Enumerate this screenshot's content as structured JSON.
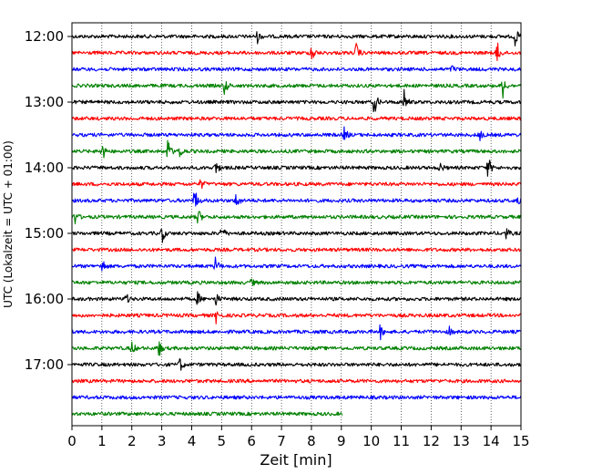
{
  "chart_data": {
    "type": "line",
    "subtype": "helicorder-seismogram",
    "xlabel": "Zeit  [min]",
    "ylabel": "UTC (Lokalzeit = UTC + 01:00)",
    "xlim": [
      0,
      15
    ],
    "x_ticks": [
      0,
      1,
      2,
      3,
      4,
      5,
      6,
      7,
      8,
      9,
      10,
      11,
      12,
      13,
      14,
      15
    ],
    "y_tick_labels": [
      "12:00",
      "13:00",
      "14:00",
      "15:00",
      "16:00",
      "17:00"
    ],
    "grid": "vertical-dotted",
    "colors": [
      "#000000",
      "#ff0000",
      "#0000ff",
      "#008000"
    ],
    "traces": [
      {
        "start": "12:00",
        "color": "#000000",
        "end_min": 15,
        "events": [
          [
            6.2,
            0.5
          ],
          [
            14.8,
            0.9
          ]
        ]
      },
      {
        "start": "12:15",
        "color": "#ff0000",
        "end_min": 15,
        "events": [
          [
            8.0,
            1.0
          ],
          [
            9.5,
            0.8
          ],
          [
            14.2,
            1.1
          ]
        ]
      },
      {
        "start": "12:30",
        "color": "#0000ff",
        "end_min": 15,
        "events": [
          [
            12.7,
            0.3
          ]
        ]
      },
      {
        "start": "12:45",
        "color": "#008000",
        "end_min": 15,
        "events": [
          [
            5.1,
            0.8
          ],
          [
            14.4,
            1.0
          ]
        ]
      },
      {
        "start": "13:00",
        "color": "#000000",
        "end_min": 15,
        "events": [
          [
            10.1,
            1.2
          ],
          [
            11.1,
            1.1
          ]
        ]
      },
      {
        "start": "13:15",
        "color": "#ff0000",
        "end_min": 15,
        "events": []
      },
      {
        "start": "13:30",
        "color": "#0000ff",
        "end_min": 15,
        "events": [
          [
            9.1,
            0.7
          ],
          [
            13.6,
            0.6
          ]
        ]
      },
      {
        "start": "13:45",
        "color": "#008000",
        "end_min": 15,
        "events": [
          [
            1.0,
            1.0
          ],
          [
            3.2,
            1.1
          ],
          [
            3.6,
            0.7
          ]
        ]
      },
      {
        "start": "14:00",
        "color": "#000000",
        "end_min": 15,
        "events": [
          [
            4.8,
            0.7
          ],
          [
            12.3,
            0.5
          ],
          [
            13.9,
            1.0
          ]
        ]
      },
      {
        "start": "14:15",
        "color": "#ff0000",
        "end_min": 15,
        "events": [
          [
            4.3,
            0.5
          ]
        ]
      },
      {
        "start": "14:30",
        "color": "#0000ff",
        "end_min": 15,
        "events": [
          [
            4.1,
            1.2
          ],
          [
            5.5,
            0.9
          ],
          [
            14.9,
            0.6
          ]
        ]
      },
      {
        "start": "14:45",
        "color": "#008000",
        "end_min": 15,
        "events": [
          [
            0.1,
            0.6
          ],
          [
            4.2,
            0.9
          ]
        ]
      },
      {
        "start": "15:00",
        "color": "#000000",
        "end_min": 15,
        "events": [
          [
            3.0,
            0.9
          ],
          [
            5.0,
            0.7
          ],
          [
            14.5,
            0.5
          ]
        ]
      },
      {
        "start": "15:15",
        "color": "#ff0000",
        "end_min": 15,
        "events": []
      },
      {
        "start": "15:30",
        "color": "#0000ff",
        "end_min": 15,
        "events": [
          [
            1.0,
            0.8
          ],
          [
            4.8,
            0.8
          ]
        ]
      },
      {
        "start": "15:45",
        "color": "#008000",
        "end_min": 15,
        "events": [
          [
            6.0,
            0.3
          ]
        ]
      },
      {
        "start": "16:00",
        "color": "#000000",
        "end_min": 15,
        "events": [
          [
            1.8,
            0.5
          ],
          [
            4.2,
            0.6
          ],
          [
            4.8,
            0.6
          ]
        ]
      },
      {
        "start": "16:15",
        "color": "#ff0000",
        "end_min": 15,
        "events": [
          [
            4.8,
            0.7
          ]
        ]
      },
      {
        "start": "16:30",
        "color": "#0000ff",
        "end_min": 15,
        "events": [
          [
            10.3,
            0.6
          ],
          [
            12.6,
            0.4
          ]
        ]
      },
      {
        "start": "16:45",
        "color": "#008000",
        "end_min": 15,
        "events": [
          [
            2.0,
            0.6
          ],
          [
            2.9,
            0.8
          ]
        ]
      },
      {
        "start": "17:00",
        "color": "#000000",
        "end_min": 15,
        "events": [
          [
            3.6,
            0.7
          ]
        ]
      },
      {
        "start": "17:15",
        "color": "#ff0000",
        "end_min": 15,
        "events": []
      },
      {
        "start": "17:30",
        "color": "#0000ff",
        "end_min": 15,
        "events": []
      },
      {
        "start": "17:45",
        "color": "#008000",
        "end_min": 9.05,
        "events": []
      }
    ]
  }
}
